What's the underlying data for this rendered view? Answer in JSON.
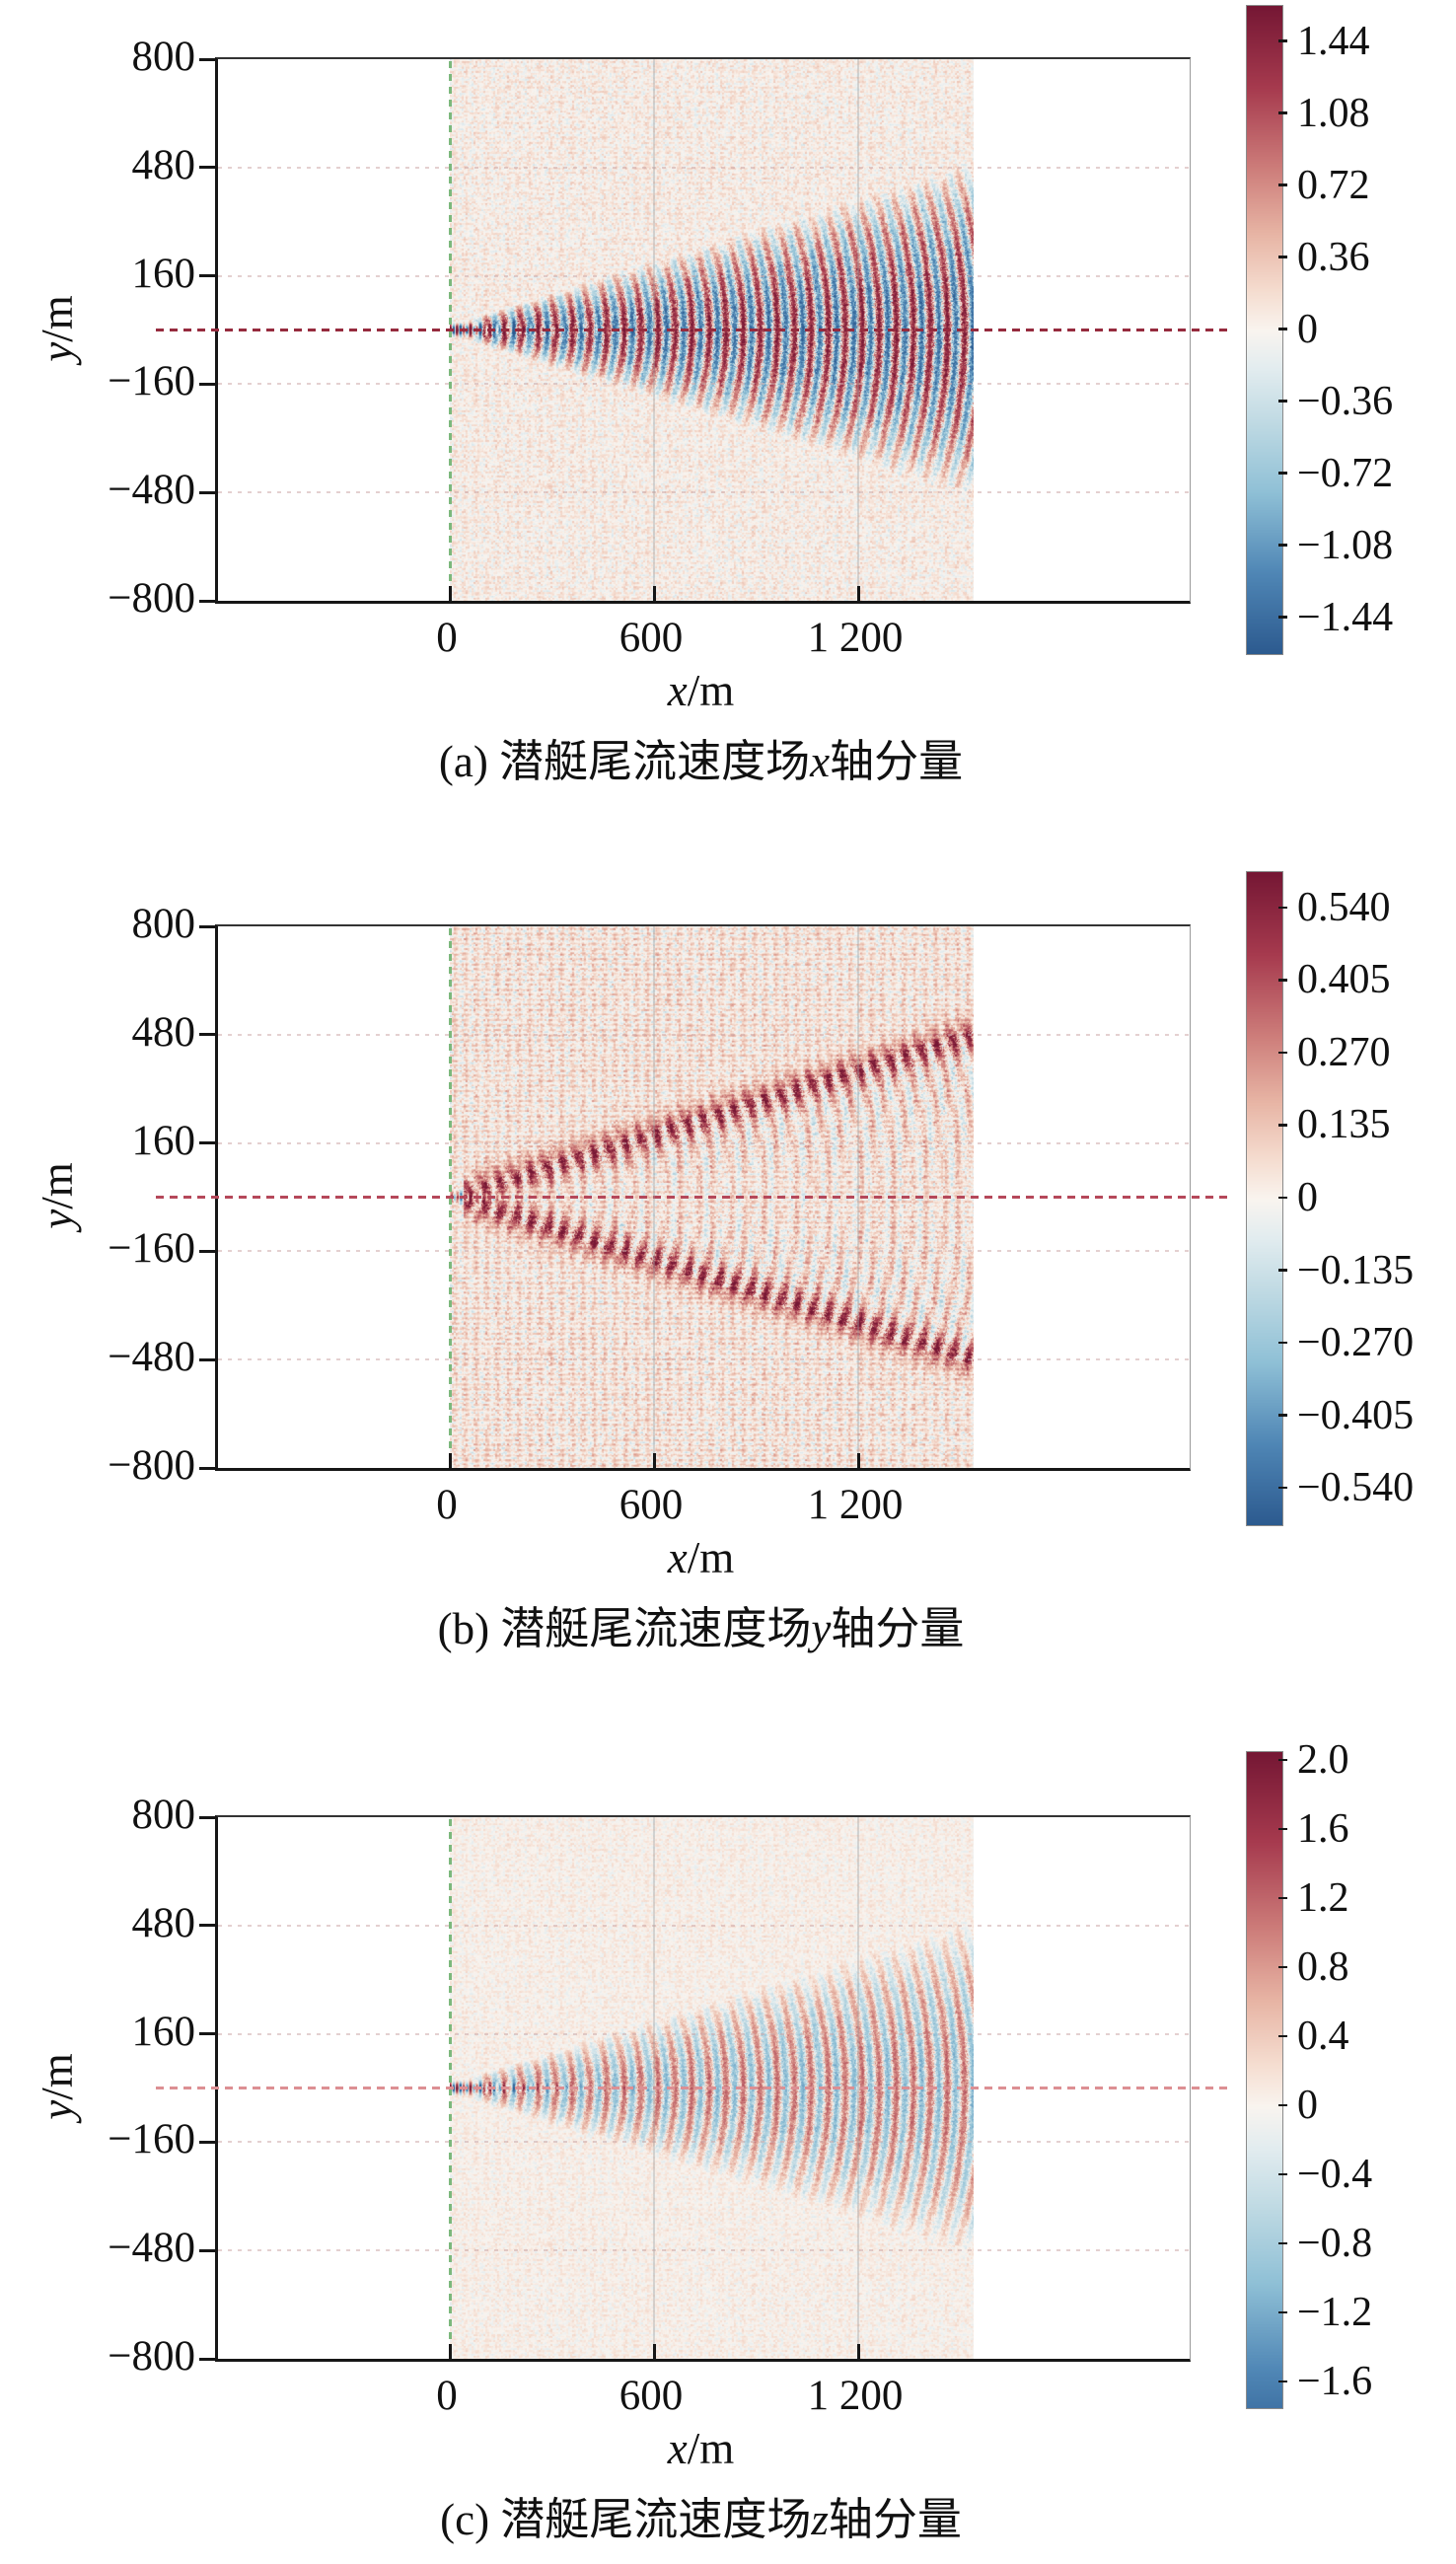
{
  "figure": {
    "background": "#ffffff"
  },
  "colormap": [
    {
      "t": -1.0,
      "c": "#2c5a8f"
    },
    {
      "t": -0.75,
      "c": "#4f86b5"
    },
    {
      "t": -0.5,
      "c": "#8fc0d6"
    },
    {
      "t": -0.3,
      "c": "#bcd8e2"
    },
    {
      "t": -0.12,
      "c": "#e2ecef"
    },
    {
      "t": 0.0,
      "c": "#f9f4ef"
    },
    {
      "t": 0.12,
      "c": "#f5ddd0"
    },
    {
      "t": 0.3,
      "c": "#e7b4a4"
    },
    {
      "t": 0.5,
      "c": "#cd7d7a"
    },
    {
      "t": 0.75,
      "c": "#a63a4e"
    },
    {
      "t": 1.0,
      "c": "#751734"
    }
  ],
  "chart_data": [
    {
      "type": "heatmap",
      "panel": "a",
      "caption_prefix": "(a) 潜艇尾流速度场",
      "caption_var": "x",
      "caption_suffix": "轴分量",
      "xlabel_var": "x",
      "xlabel_unit": "/m",
      "ylabel_var": "y",
      "ylabel_unit": "/m",
      "xlim_m": [
        -680,
        2175
      ],
      "ylim_m": [
        -800,
        800
      ],
      "x_tick_values": [
        0,
        600,
        1200
      ],
      "x_tick_labels": [
        "0",
        "600",
        "1 200"
      ],
      "y_tick_values": [
        800,
        480,
        160,
        -160,
        -480,
        -800
      ],
      "y_tick_labels": [
        "800",
        "480",
        "160",
        "−160",
        "−480",
        "−800"
      ],
      "grid": true,
      "colorbar": {
        "tick_labels": [
          "1.44",
          "1.08",
          "0.72",
          "0.36",
          "0",
          "−0.36",
          "−0.72",
          "−1.08",
          "−1.44"
        ],
        "tick_values": [
          1.44,
          1.08,
          0.72,
          0.36,
          0,
          -0.36,
          -0.72,
          -1.08,
          -1.44
        ],
        "value_top": 1.62,
        "value_bottom": -1.62,
        "vscale": 1.62
      },
      "wake": {
        "description": "Submarine Kelvin wake, x-velocity component: strong alternating centerline jet near origin, transverse arc waves filling ~17.5 deg wedge over strip x=0..1540 m, faint red/blue speckle lattice outside wedge",
        "strip_x_range_m": [
          0,
          1540
        ],
        "wedge_half_angle_deg": 17.5,
        "component": "x",
        "arc_wavelength_m": 50,
        "arc_amp": 1.5,
        "burst_amp": 2.6,
        "burst_decay_m": 240,
        "edge_arm_amp": 0,
        "cross_amp": 0.12,
        "speckle_amp": 0.28,
        "speckle_bias": 0.05,
        "zero_line_color": "#962b3e",
        "start_line_color": "#7cb87c"
      }
    },
    {
      "type": "heatmap",
      "panel": "b",
      "caption_prefix": "(b) 潜艇尾流速度场",
      "caption_var": "y",
      "caption_suffix": "轴分量",
      "xlabel_var": "x",
      "xlabel_unit": "/m",
      "ylabel_var": "y",
      "ylabel_unit": "/m",
      "xlim_m": [
        -680,
        2175
      ],
      "ylim_m": [
        -800,
        800
      ],
      "x_tick_values": [
        0,
        600,
        1200
      ],
      "x_tick_labels": [
        "0",
        "600",
        "1 200"
      ],
      "y_tick_values": [
        800,
        480,
        160,
        -160,
        -480,
        -800
      ],
      "y_tick_labels": [
        "800",
        "480",
        "160",
        "−160",
        "−480",
        "−800"
      ],
      "grid": true,
      "colorbar": {
        "tick_labels": [
          "0.540",
          "0.405",
          "0.270",
          "0.135",
          "0",
          "−0.135",
          "−0.270",
          "−0.405",
          "−0.540"
        ],
        "tick_values": [
          0.54,
          0.405,
          0.27,
          0.135,
          0,
          -0.135,
          -0.27,
          -0.405,
          -0.54
        ],
        "value_top": 0.6075,
        "value_bottom": -0.6075,
        "vscale": 0.6075
      },
      "wake": {
        "description": "Submarine Kelvin wake, y-velocity component: two dark-red divergent arms along wedge boundary reaching y=±480 m at x≈1500 m, dense red speckle lattice across strip, chevron streaks near centerline",
        "strip_x_range_m": [
          0,
          1540
        ],
        "wedge_half_angle_deg": 17.5,
        "component": "y",
        "arc_wavelength_m": 48,
        "arc_amp": 0.17,
        "burst_amp": 0.55,
        "burst_decay_m": 140,
        "edge_arm_amp": 0.42,
        "cross_amp": 0.11,
        "speckle_amp": 0.13,
        "speckle_bias": 0.045,
        "zero_line_color": "#b5485a",
        "start_line_color": "#7cb87c"
      }
    },
    {
      "type": "heatmap",
      "panel": "c",
      "caption_prefix": "(c) 潜艇尾流速度场",
      "caption_var": "z",
      "caption_suffix": "轴分量",
      "xlabel_var": "x",
      "xlabel_unit": "/m",
      "ylabel_var": "y",
      "ylabel_unit": "/m",
      "xlim_m": [
        -680,
        2175
      ],
      "ylim_m": [
        -800,
        800
      ],
      "x_tick_values": [
        0,
        600,
        1200
      ],
      "x_tick_labels": [
        "0",
        "600",
        "1 200"
      ],
      "y_tick_values": [
        800,
        480,
        160,
        -160,
        -480,
        -800
      ],
      "y_tick_labels": [
        "800",
        "480",
        "160",
        "−160",
        "−480",
        "−800"
      ],
      "grid": true,
      "colorbar": {
        "tick_labels": [
          "2.0",
          "1.6",
          "1.2",
          "0.8",
          "0.4",
          "0",
          "−0.4",
          "−0.8",
          "−1.2",
          "−1.6"
        ],
        "tick_values": [
          2.0,
          1.6,
          1.2,
          0.8,
          0.4,
          0,
          -0.4,
          -0.8,
          -1.2,
          -1.6
        ],
        "value_top": 2.05,
        "value_bottom": -1.75,
        "vscale": 2.05
      },
      "wake": {
        "description": "Submarine Kelvin wake, z-velocity component: lighter transverse arc waves inside wedge, short intense centerline burst near origin, pale red speckle over strip x=0..1540 m",
        "strip_x_range_m": [
          0,
          1540
        ],
        "wedge_half_angle_deg": 17.5,
        "component": "z",
        "arc_wavelength_m": 50,
        "arc_amp": 1.15,
        "burst_amp": 2.8,
        "burst_decay_m": 210,
        "edge_arm_amp": 0,
        "cross_amp": 0.1,
        "speckle_amp": 0.24,
        "speckle_bias": 0.04,
        "zero_line_color": "#dc8f93",
        "start_line_color": "#7cb87c"
      }
    }
  ]
}
